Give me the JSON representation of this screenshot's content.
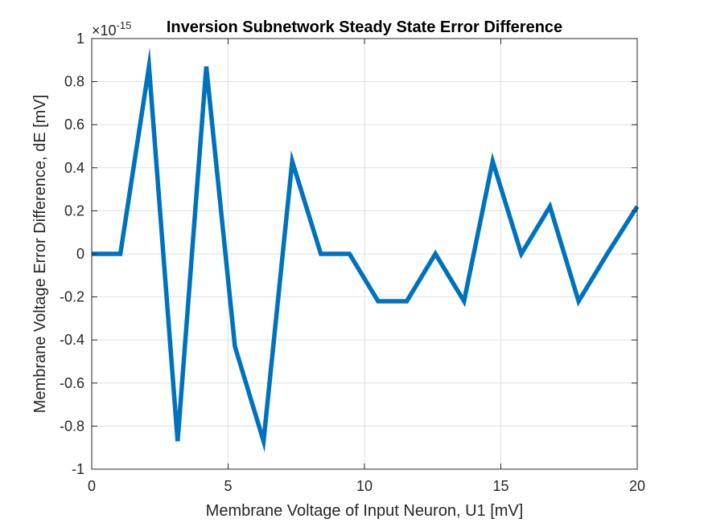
{
  "chart_data": {
    "type": "line",
    "title": "Inversion Subnetwork Steady State Error Difference",
    "xlabel": "Membrane Voltage of Input Neuron, U1 [mV]",
    "ylabel": "Membrane Voltage Error Difference, dE [mV]",
    "exponent_label": {
      "base": "×10",
      "exponent": "-15"
    },
    "xlim": [
      0,
      20
    ],
    "ylim": [
      -1,
      1
    ],
    "xticks": [
      0,
      5,
      10,
      15,
      20
    ],
    "yticks": [
      -1,
      -0.8,
      -0.6,
      -0.4,
      -0.2,
      0,
      0.2,
      0.4,
      0.6,
      0.8,
      1
    ],
    "x_tick_labels": [
      "0",
      "5",
      "10",
      "15",
      "20"
    ],
    "y_tick_labels": [
      "-1",
      "-0.8",
      "-0.6",
      "-0.4",
      "-0.2",
      "0",
      "0.2",
      "0.4",
      "0.6",
      "0.8",
      "1"
    ],
    "grid": true,
    "series": [
      {
        "color": "#0072BD",
        "x": [
          0,
          1.05,
          2.1,
          3.15,
          4.2,
          5.25,
          6.3,
          7.35,
          8.4,
          9.45,
          10.5,
          11.55,
          12.6,
          13.65,
          14.7,
          15.75,
          16.8,
          17.85,
          18.9,
          20
        ],
        "y": [
          0,
          0,
          0.87,
          -0.87,
          0.87,
          -0.43,
          -0.87,
          0.43,
          0,
          0,
          -0.22,
          -0.22,
          0,
          -0.22,
          0.43,
          0,
          0.22,
          -0.22,
          0,
          0.22
        ]
      }
    ]
  }
}
